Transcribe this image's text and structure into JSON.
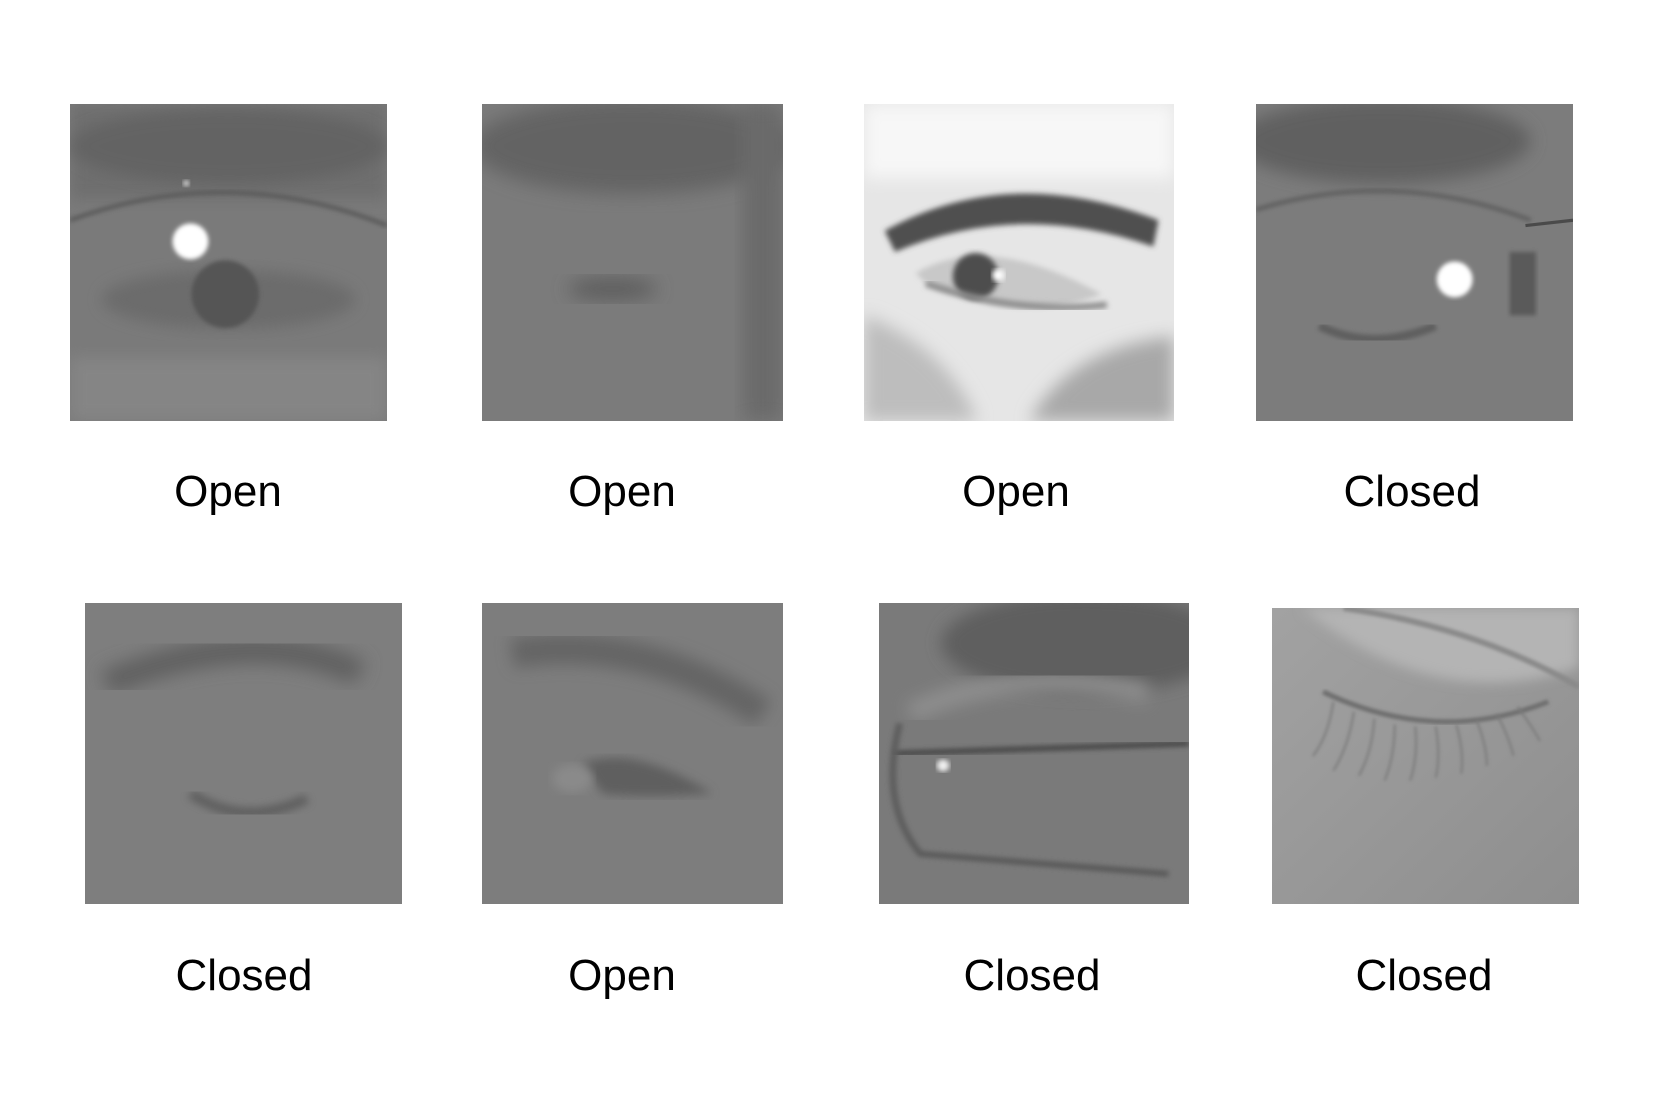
{
  "figure": {
    "samples": [
      {
        "label": "Open",
        "thumbnail": "eye-with-glasses-glare-icon"
      },
      {
        "label": "Open",
        "thumbnail": "narrow-eye-icon"
      },
      {
        "label": "Open",
        "thumbnail": "bright-open-eye-icon"
      },
      {
        "label": "Closed",
        "thumbnail": "closed-eye-with-glasses-glare-icon"
      },
      {
        "label": "Closed",
        "thumbnail": "closed-eye-icon"
      },
      {
        "label": "Open",
        "thumbnail": "squinting-eye-icon"
      },
      {
        "label": "Closed",
        "thumbnail": "closed-eye-glasses-frame-icon"
      },
      {
        "label": "Closed",
        "thumbnail": "closed-eye-lashes-icon"
      }
    ]
  }
}
